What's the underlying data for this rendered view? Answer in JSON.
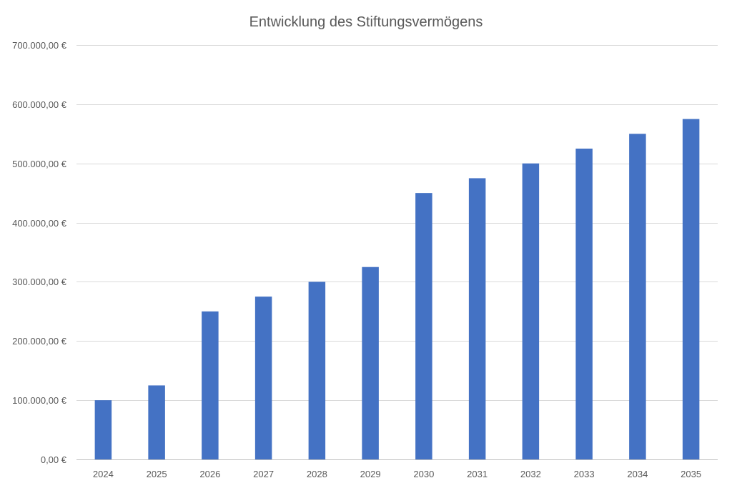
{
  "chart_data": {
    "type": "bar",
    "title": "Entwicklung des Stiftungsvermögens",
    "xlabel": "",
    "ylabel": "",
    "categories": [
      "2024",
      "2025",
      "2026",
      "2027",
      "2028",
      "2029",
      "2030",
      "2031",
      "2032",
      "2033",
      "2034",
      "2035"
    ],
    "series": [
      {
        "name": "Stiftungsvermögen",
        "values": [
          100000,
          125000,
          250000,
          275000,
          300000,
          325000,
          450000,
          475000,
          500000,
          525000,
          550000,
          575000
        ],
        "color": "#4472c4"
      }
    ],
    "ylim": [
      0,
      700000
    ],
    "yticks": [
      0,
      100000,
      200000,
      300000,
      400000,
      500000,
      600000,
      700000
    ],
    "ytick_labels": [
      "0,00 €",
      "100.000,00 €",
      "200.000,00 €",
      "300.000,00 €",
      "400.000,00 €",
      "500.000,00 €",
      "600.000,00 €",
      "700.000,00 €"
    ],
    "grid": true,
    "legend": "none"
  },
  "colors": {
    "bar": "#4472c4",
    "grid": "#d9d9d9",
    "text": "#595959"
  }
}
